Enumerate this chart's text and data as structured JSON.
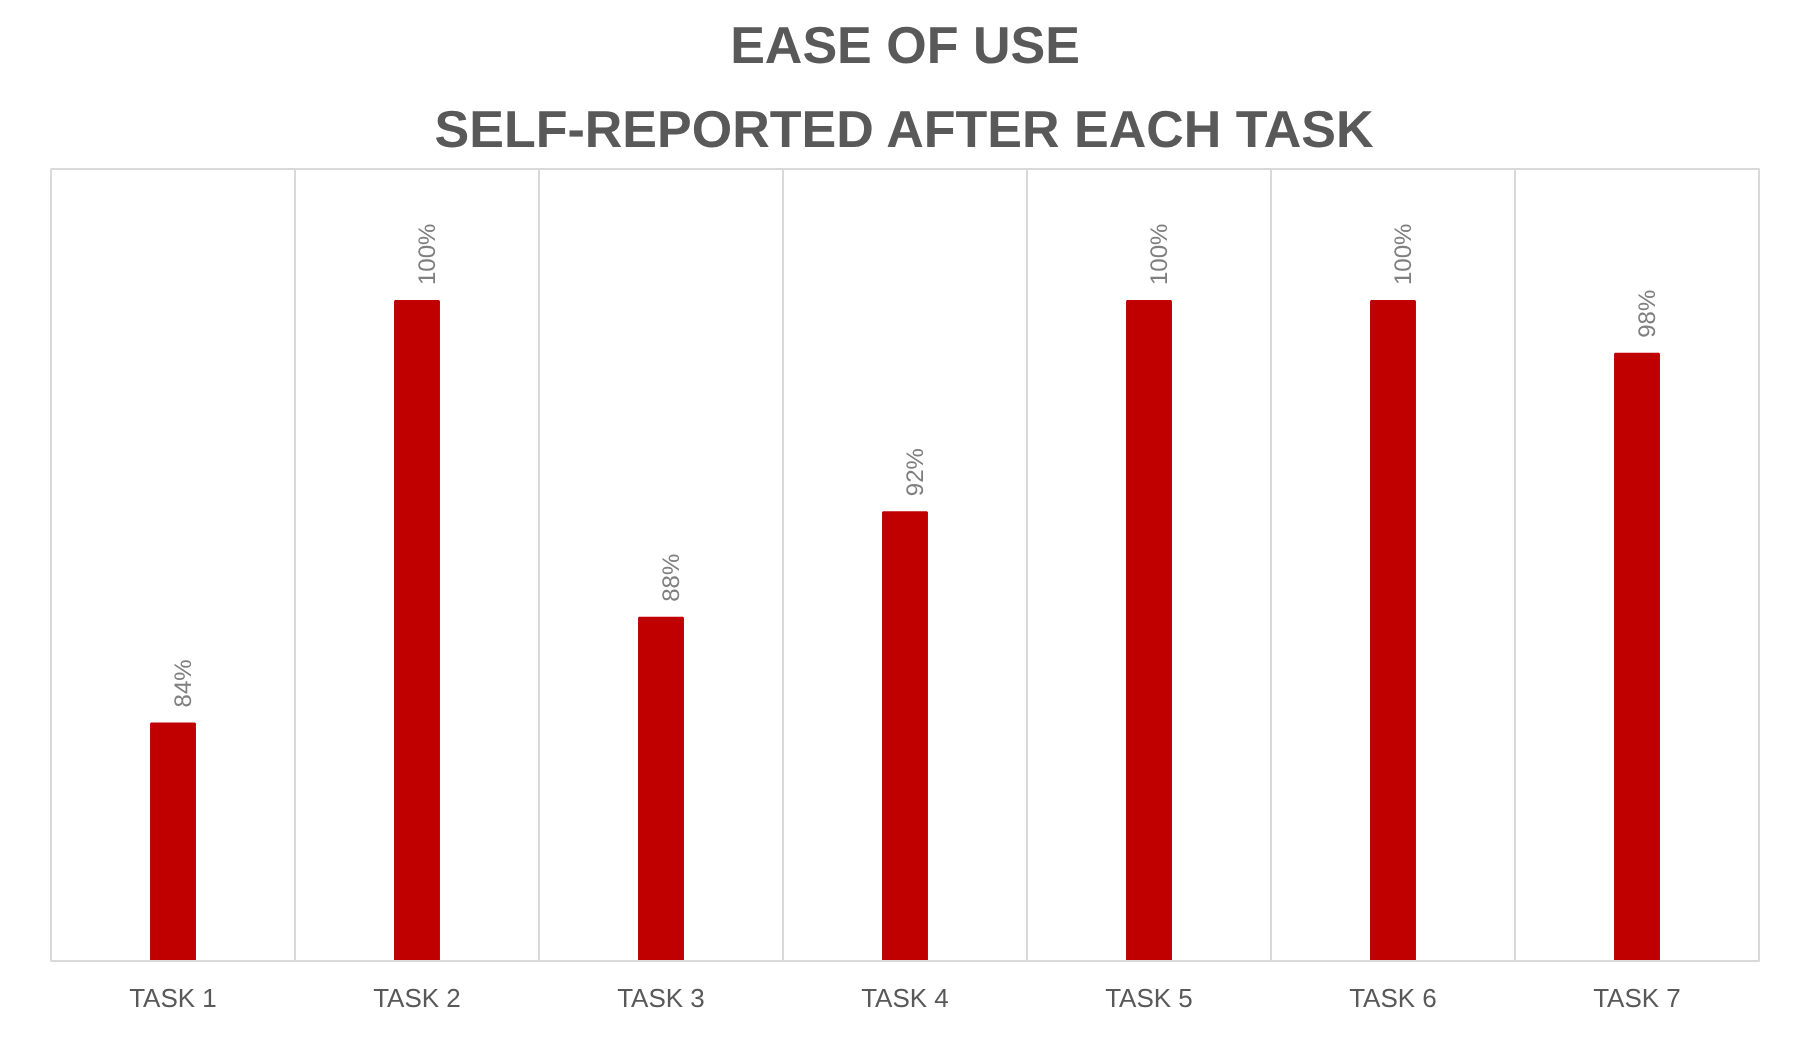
{
  "chart_data": {
    "type": "bar",
    "title": "EASE OF USE",
    "subtitle": "SELF-REPORTED AFTER EACH TASK",
    "categories": [
      "TASK 1",
      "TASK 2",
      "TASK 3",
      "TASK 4",
      "TASK 5",
      "TASK 6",
      "TASK 7"
    ],
    "values": [
      84,
      100,
      88,
      92,
      100,
      100,
      98
    ],
    "value_labels": [
      "84%",
      "100%",
      "88%",
      "92%",
      "100%",
      "100%",
      "98%"
    ],
    "color": "#c00000",
    "ylim": [
      75,
      105
    ],
    "grid": "x",
    "tick_labels": "x"
  }
}
